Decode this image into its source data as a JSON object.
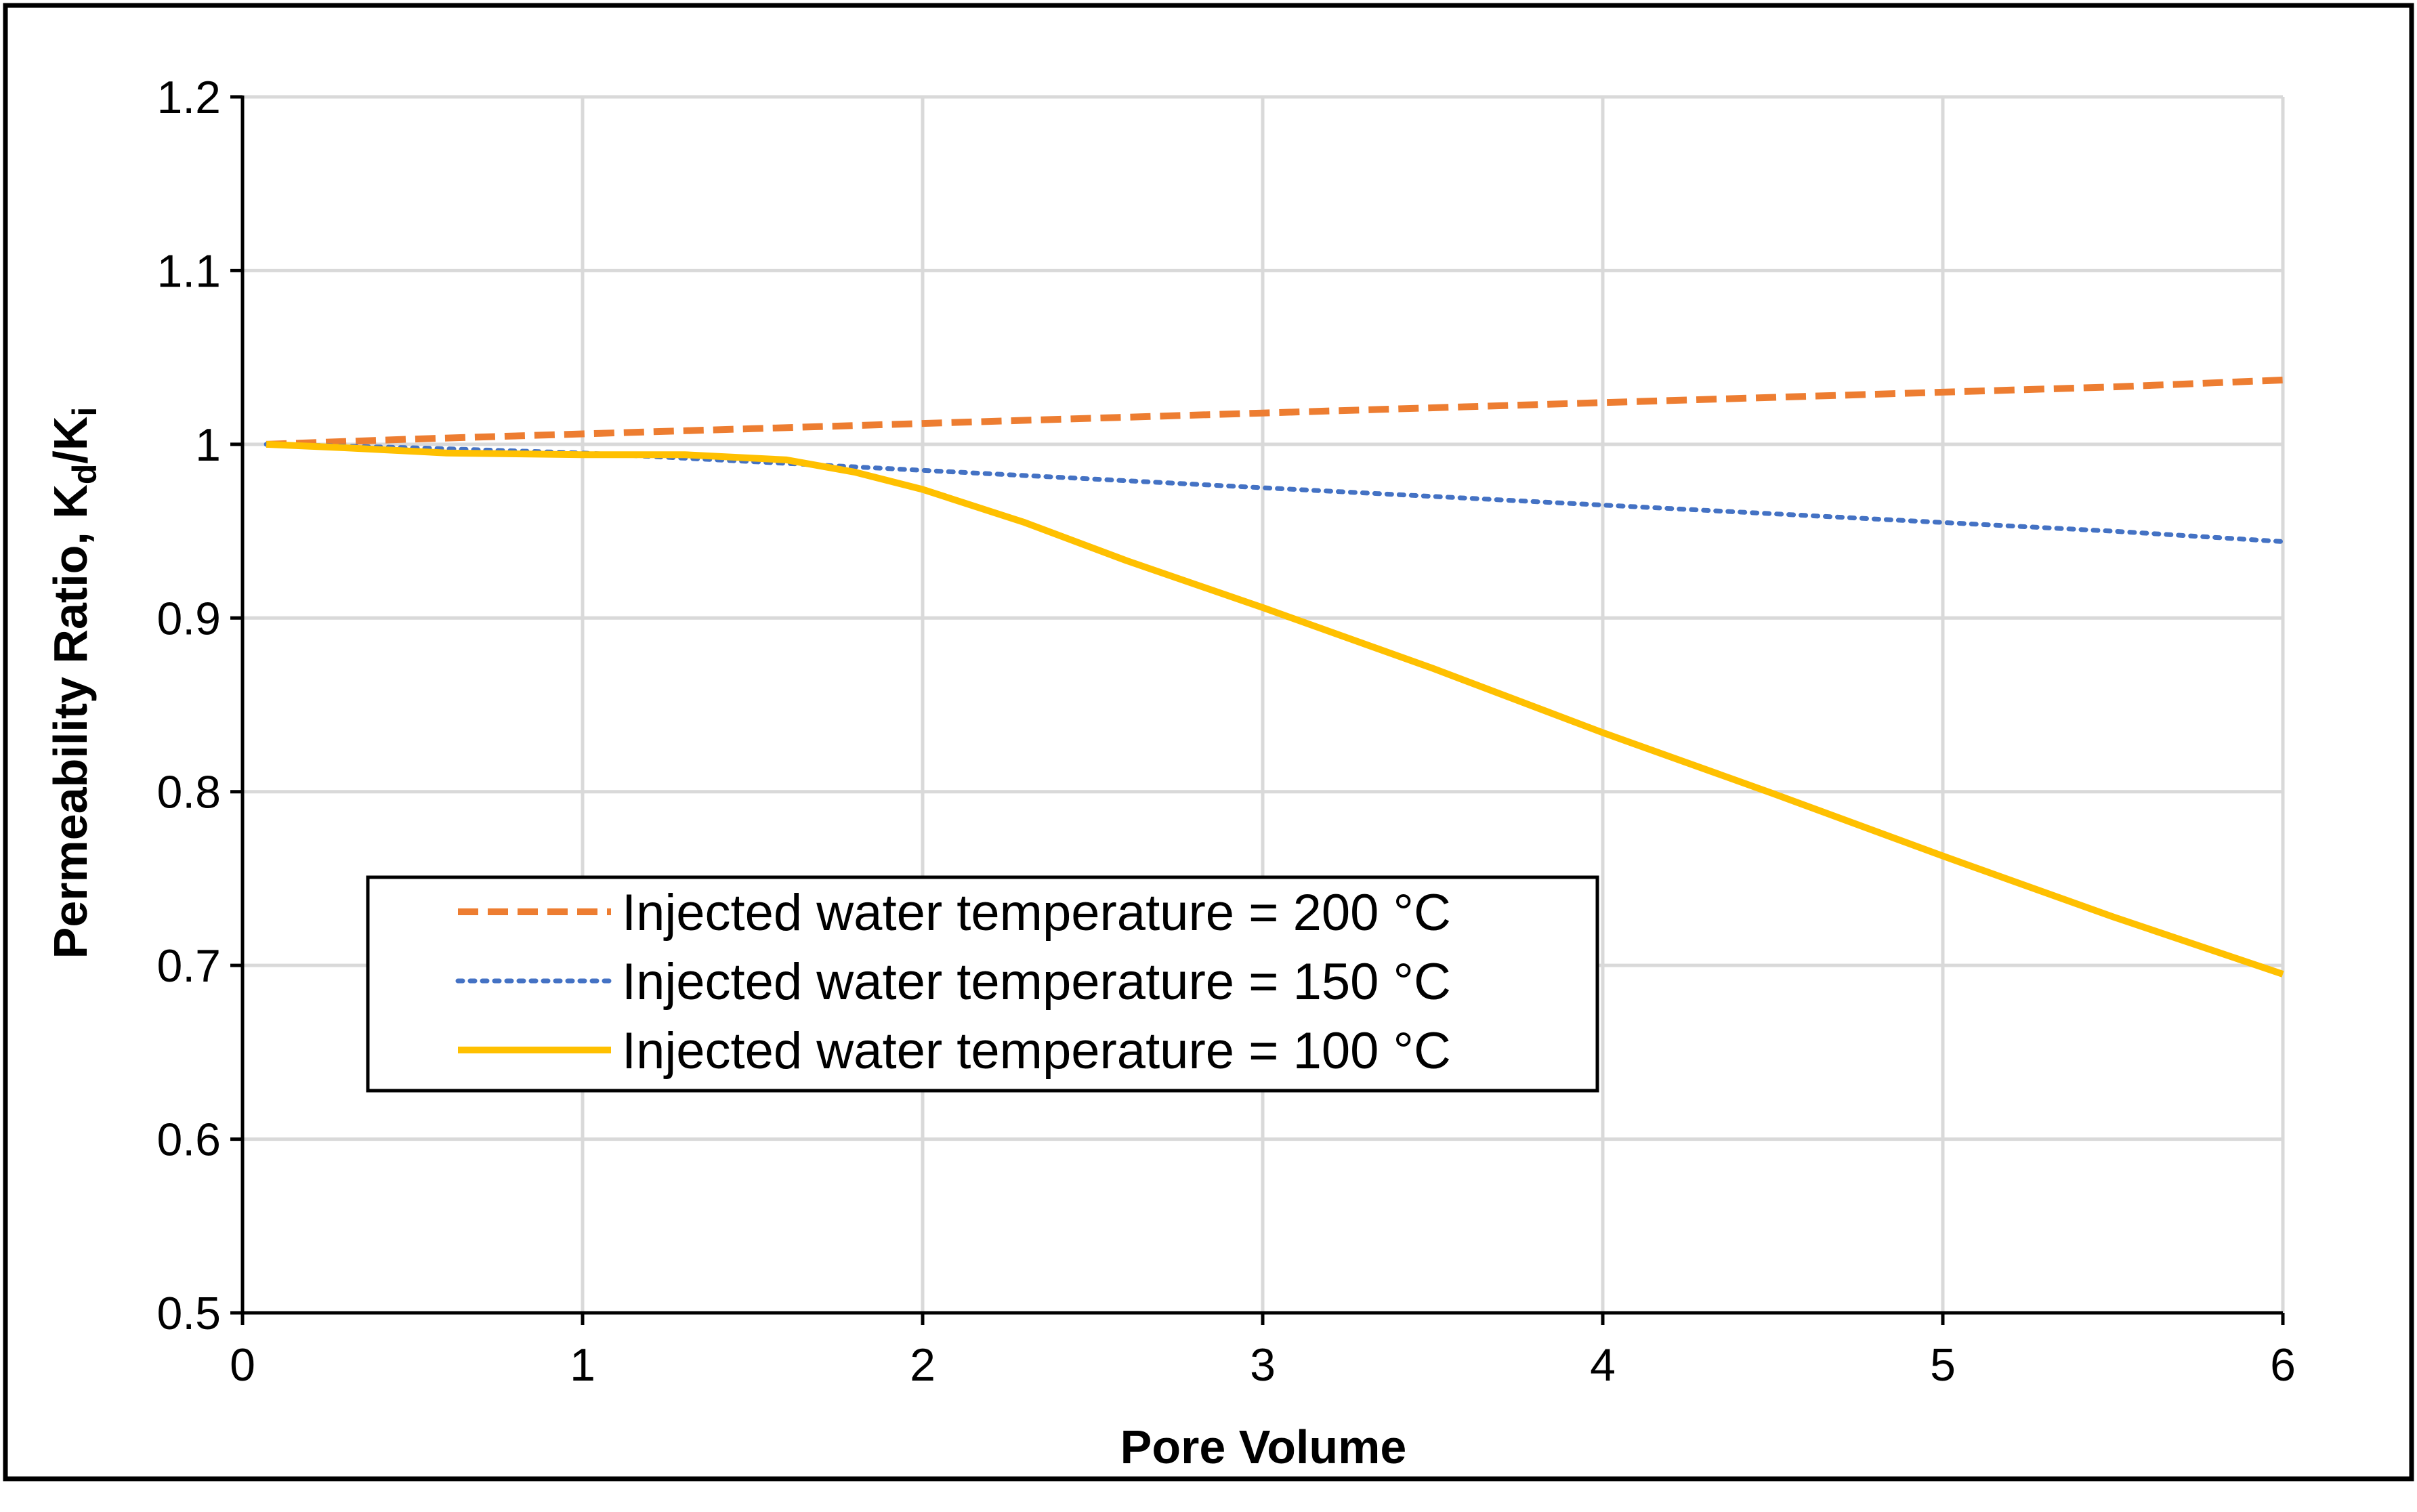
{
  "chart_data": {
    "type": "line",
    "title": "",
    "xlabel": "Pore Volume",
    "ylabel": "Permeability Ratio, Kd/Ki",
    "ylabel_parts": {
      "main": "Permeability Ratio, K",
      "sub1": "d",
      "slash": "/K",
      "sub2": "i"
    },
    "xlim": [
      0,
      6
    ],
    "ylim": [
      0.5,
      1.2
    ],
    "x_ticks": [
      0,
      1,
      2,
      3,
      4,
      5,
      6
    ],
    "x_tick_labels": [
      "0",
      "1",
      "2",
      "3",
      "4",
      "5",
      "6"
    ],
    "y_ticks": [
      0.5,
      0.6,
      0.7,
      0.8,
      0.9,
      1.0,
      1.1,
      1.2
    ],
    "y_tick_labels": [
      "0.5",
      "0.6",
      "0.7",
      "0.8",
      "0.9",
      "1",
      "1.1",
      "1.2"
    ],
    "grid": true,
    "legend_position": "center-left",
    "series": [
      {
        "name": "Injected water temperature = 200 °C",
        "color": "#ED7D31",
        "line_style": "dashed",
        "x": [
          0.07,
          0.5,
          1,
          1.5,
          2,
          2.5,
          3,
          3.5,
          4,
          4.5,
          5,
          5.5,
          6
        ],
        "y": [
          1.0,
          1.003,
          1.006,
          1.009,
          1.012,
          1.015,
          1.018,
          1.021,
          1.024,
          1.027,
          1.03,
          1.033,
          1.037
        ]
      },
      {
        "name": "Injected water temperature = 150 °C",
        "color": "#4472C4",
        "line_style": "dotted",
        "x": [
          0.07,
          0.5,
          1,
          1.5,
          2,
          2.5,
          3,
          3.5,
          4,
          4.5,
          5,
          5.5,
          6
        ],
        "y": [
          1.0,
          0.998,
          0.995,
          0.99,
          0.985,
          0.98,
          0.975,
          0.97,
          0.965,
          0.96,
          0.955,
          0.95,
          0.944
        ]
      },
      {
        "name": "Injected water temperature = 100 °C",
        "color": "#FFC000",
        "line_style": "solid",
        "x": [
          0.07,
          0.3,
          0.6,
          1.0,
          1.3,
          1.6,
          1.8,
          2.0,
          2.3,
          2.6,
          3.0,
          3.5,
          4.0,
          4.5,
          5.0,
          5.5,
          6.0
        ],
        "y": [
          1.0,
          0.998,
          0.995,
          0.994,
          0.994,
          0.991,
          0.984,
          0.974,
          0.955,
          0.933,
          0.906,
          0.871,
          0.834,
          0.799,
          0.763,
          0.728,
          0.695
        ]
      }
    ]
  }
}
